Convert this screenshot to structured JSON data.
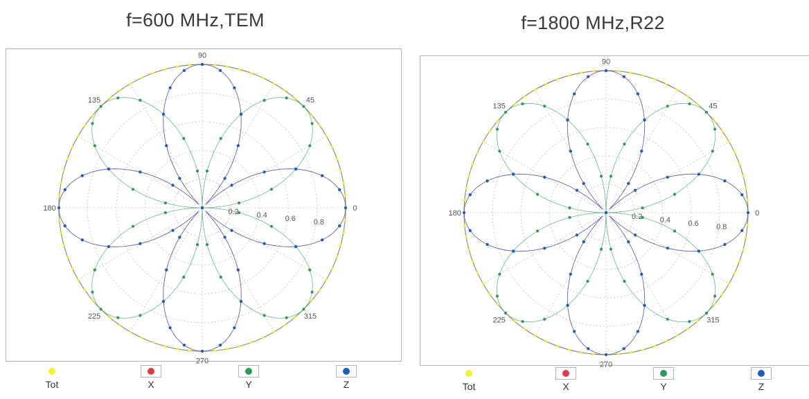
{
  "colors": {
    "Tot": "#f2f230",
    "X": "#e23a48",
    "Y": "#2e9a5a",
    "Z": "#1a5fc0"
  },
  "chart_data": [
    {
      "type": "scatter",
      "coordinate_system": "polar",
      "title": "f=600 MHz,TEM",
      "angle_ticks": [
        "0",
        "45",
        "90",
        "135",
        "180",
        "225",
        "270",
        "315"
      ],
      "radial_ticks": [
        "0.2",
        "0.4",
        "0.6",
        "0.8"
      ],
      "rlim": [
        0,
        1
      ],
      "grid": true,
      "legend": "bottom",
      "series": [
        {
          "name": "Tot",
          "shape": "circle",
          "r": 1.0,
          "theta0": 0
        },
        {
          "name": "X",
          "shape": "rose",
          "petals": 4,
          "theta0": 0
        },
        {
          "name": "Y",
          "shape": "rose",
          "petals": 4,
          "theta0": 45
        },
        {
          "name": "Z",
          "shape": "rose",
          "petals": 4,
          "theta0": 90
        }
      ]
    },
    {
      "type": "scatter",
      "coordinate_system": "polar",
      "title": "f=1800 MHz,R22",
      "angle_ticks": [
        "0",
        "45",
        "90",
        "135",
        "180",
        "225",
        "270",
        "315"
      ],
      "radial_ticks": [
        "0.2",
        "0.4",
        "0.6",
        "0.8"
      ],
      "rlim": [
        0,
        1
      ],
      "grid": true,
      "legend": "bottom",
      "series": [
        {
          "name": "Tot",
          "shape": "circle",
          "r": 1.0,
          "theta0": 0
        },
        {
          "name": "X",
          "shape": "rose",
          "petals": 4,
          "theta0": 0
        },
        {
          "name": "Y",
          "shape": "rose",
          "petals": 4,
          "theta0": 45
        },
        {
          "name": "Z",
          "shape": "rose",
          "petals": 4,
          "theta0": 90
        }
      ]
    }
  ]
}
